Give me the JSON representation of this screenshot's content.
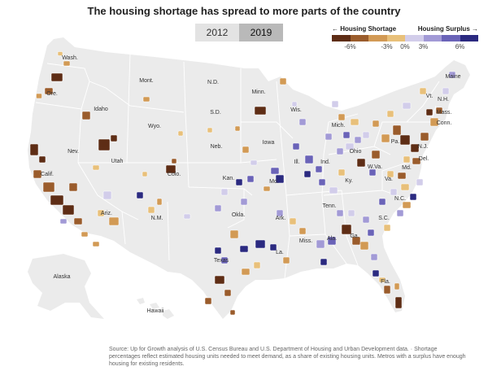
{
  "title": "The housing shortage has spread to more parts of the country",
  "toggle": {
    "options": [
      "2012",
      "2019"
    ],
    "selected": "2019"
  },
  "legend": {
    "left_label": "← Housing Shortage",
    "right_label": "Housing Surplus →",
    "colors": [
      "#5e2d15",
      "#9a5c2c",
      "#d29a55",
      "#e8c07a",
      "#d2cdea",
      "#a29ad6",
      "#6a63b8",
      "#2b2a80"
    ],
    "ticks": [
      "-6%",
      "-3%",
      "0%",
      "3%",
      "6%"
    ]
  },
  "colors": {
    "land": "#ebebeb",
    "stroke": "#ffffff",
    "deep_shortage": "#5e2d15",
    "shortage": "#9a5c2c",
    "mild_shortage": "#d29a55",
    "slight_shortage": "#e8c07a",
    "slight_surplus": "#d2cdea",
    "surplus": "#a29ad6",
    "strong_surplus": "#6a63b8",
    "deep_surplus": "#2b2a80"
  },
  "states": [
    "Wash.",
    "Ore.",
    "Idaho",
    "Mont.",
    "N.D.",
    "Minn.",
    "Wis.",
    "Mich.",
    "Vt.",
    "N.H.",
    "Maine",
    "Mass.",
    "Conn.",
    "N.J.",
    "Del.",
    "Md.",
    "S.D.",
    "Wyo.",
    "Nev.",
    "Utah",
    "Neb.",
    "Iowa",
    "Ill.",
    "Ind.",
    "Ohio",
    "Pa.",
    "W.Va.",
    "Va.",
    "Calif.",
    "Colo.",
    "Kan.",
    "Mo.",
    "Ky.",
    "N.C.",
    "Tenn.",
    "Ariz.",
    "N.M.",
    "Okla.",
    "Ark.",
    "S.C.",
    "Miss.",
    "Ala.",
    "Ga.",
    "Texas",
    "La.",
    "Fla.",
    "Alaska",
    "Hawaii"
  ],
  "source": "Source: Up for Growth analysis of U.S. Census Bureau and U.S. Department of Housing and Urban Development data.  ·  Shortage percentages reflect estimated housing units needed to meet demand, as a share of existing housing units. Metros with a surplus have enough housing for existing residents."
}
